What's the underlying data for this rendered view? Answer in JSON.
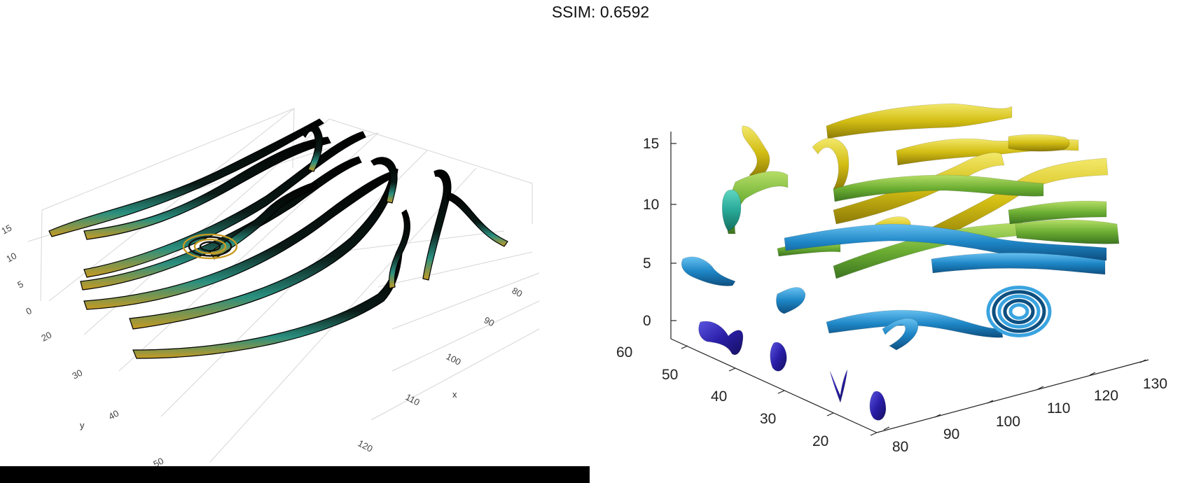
{
  "page_title": "SSIM: 0.6592",
  "chart_data": [
    {
      "type": "3d-streamtube",
      "title": "",
      "style": "black edged tubes, colored faces",
      "xlabel": "x",
      "ylabel": "y",
      "zlabel": "",
      "x_ticks": [
        "80",
        "90",
        "100",
        "110",
        "120"
      ],
      "y_ticks": [
        "20",
        "30",
        "40",
        "50"
      ],
      "z_ticks": [
        "0",
        "5",
        "10",
        "15"
      ],
      "grid": true,
      "colors": {
        "edge": "#000000",
        "face_a": "#2a8f8f",
        "face_b": "#c8a020"
      },
      "n_tubes": 13
    },
    {
      "type": "3d-streamtube",
      "title": "",
      "style": "smooth shaded tubes colored by height",
      "xlabel": "",
      "ylabel": "",
      "zlabel": "",
      "x_ticks": [
        "80",
        "90",
        "100",
        "110",
        "120",
        "130"
      ],
      "y_ticks": [
        "20",
        "30",
        "40",
        "50",
        "60"
      ],
      "z_ticks": [
        "0",
        "5",
        "10",
        "15"
      ],
      "grid": false,
      "colormap": [
        "#2a1ea8",
        "#1e88c8",
        "#2aaa9a",
        "#7ebd3a",
        "#d8c81e"
      ],
      "n_tubes": 18
    }
  ]
}
